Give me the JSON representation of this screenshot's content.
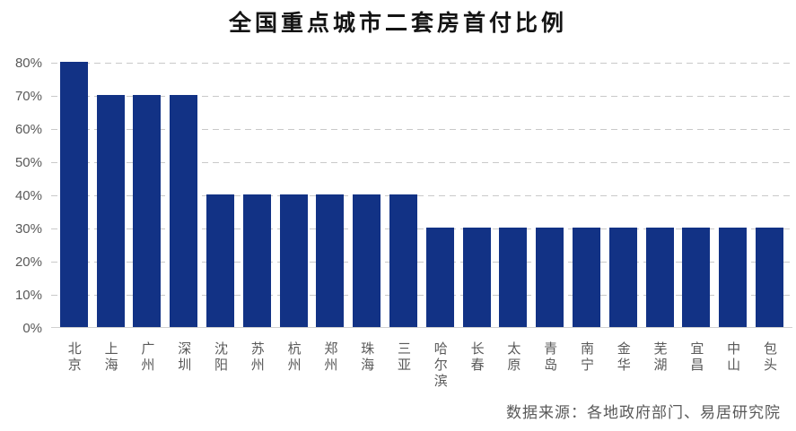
{
  "page": {
    "background": "#ffffff"
  },
  "chart_data": {
    "type": "bar",
    "title": "全国重点城市二套房首付比例",
    "categories": [
      "北京",
      "上海",
      "广州",
      "深圳",
      "沈阳",
      "苏州",
      "杭州",
      "郑州",
      "珠海",
      "三亚",
      "哈尔滨",
      "长春",
      "太原",
      "青岛",
      "南宁",
      "金华",
      "芜湖",
      "宜昌",
      "中山",
      "包头"
    ],
    "values": [
      80,
      70,
      70,
      70,
      40,
      40,
      40,
      40,
      40,
      40,
      30,
      30,
      30,
      30,
      30,
      30,
      30,
      30,
      30,
      30
    ],
    "unit": "%",
    "xlabel": "",
    "ylabel": "",
    "ylim": [
      0,
      80
    ],
    "yticks": [
      "0%",
      "10%",
      "20%",
      "30%",
      "40%",
      "50%",
      "60%",
      "70%",
      "80%"
    ],
    "ytick_step": 10,
    "grid": "horizontal-dashed",
    "legend": "none",
    "source": "数据来源：各地政府部门、易居研究院"
  },
  "colors": {
    "bar": "#123285",
    "title_text": "#141414",
    "axis_text": "#595959",
    "gridline": "#c9c9c9",
    "axis_line": "#d0d0d0",
    "background": "#ffffff"
  }
}
